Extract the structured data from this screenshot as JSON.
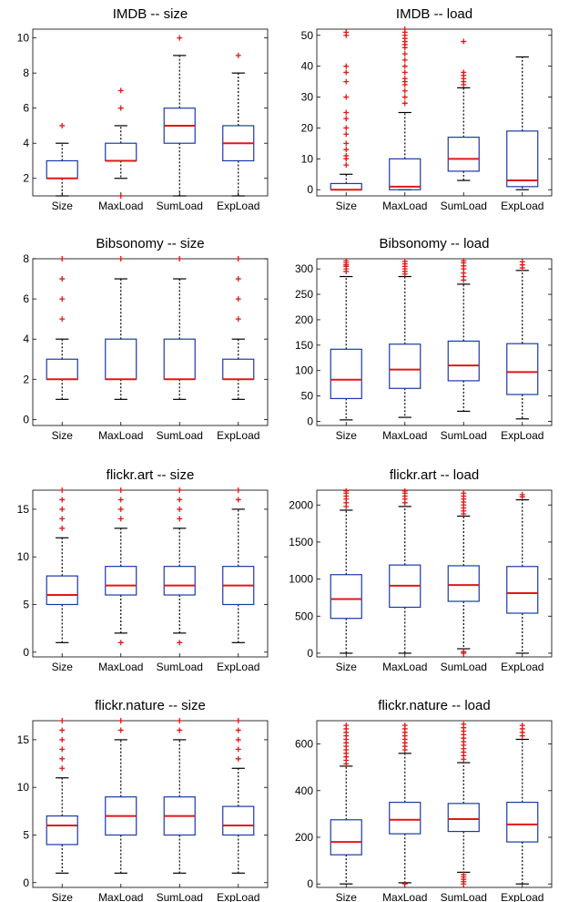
{
  "chart_data": [
    {
      "type": "boxplot",
      "title": "IMDB -- size",
      "categories": [
        "Size",
        "MaxLoad",
        "SumLoad",
        "ExpLoad"
      ],
      "ylim": [
        1,
        10.5
      ],
      "yticks": [
        2,
        4,
        6,
        8,
        10
      ],
      "boxes": [
        {
          "min": 1,
          "q1": 2,
          "median": 2,
          "q3": 3,
          "max": 4,
          "outliers": [
            5
          ]
        },
        {
          "min": 2,
          "q1": 3,
          "median": 3,
          "q3": 4,
          "max": 5,
          "outliers": [
            1,
            6,
            7
          ]
        },
        {
          "min": 1,
          "q1": 4,
          "median": 5,
          "q3": 6,
          "max": 9,
          "outliers": [
            10
          ]
        },
        {
          "min": 1,
          "q1": 3,
          "median": 4,
          "q3": 5,
          "max": 8,
          "outliers": [
            9
          ]
        }
      ]
    },
    {
      "type": "boxplot",
      "title": "IMDB -- load",
      "categories": [
        "Size",
        "MaxLoad",
        "SumLoad",
        "ExpLoad"
      ],
      "ylim": [
        -2,
        52
      ],
      "yticks": [
        0,
        10,
        20,
        30,
        40,
        50
      ],
      "boxes": [
        {
          "min": 0,
          "q1": 0,
          "median": 0,
          "q3": 2,
          "max": 5,
          "outliers": [
            8,
            10,
            11,
            13,
            15,
            18,
            20,
            23,
            25,
            30,
            35,
            38,
            40,
            50,
            51
          ]
        },
        {
          "min": 0,
          "q1": 0,
          "median": 1,
          "q3": 10,
          "max": 25,
          "outliers": [
            28,
            30,
            32,
            34,
            35,
            36,
            38,
            40,
            42,
            44,
            46,
            47,
            48,
            49,
            50,
            51,
            52
          ]
        },
        {
          "min": 3,
          "q1": 6,
          "median": 10,
          "q3": 17,
          "max": 33,
          "outliers": [
            34,
            35,
            36,
            37,
            38,
            48
          ]
        },
        {
          "min": 0,
          "q1": 1,
          "median": 3,
          "q3": 19,
          "max": 43,
          "outliers": []
        }
      ]
    },
    {
      "type": "boxplot",
      "title": "Bibsonomy -- size",
      "categories": [
        "Size",
        "MaxLoad",
        "SumLoad",
        "ExpLoad"
      ],
      "ylim": [
        -0.3,
        8
      ],
      "yticks": [
        0,
        2,
        4,
        6,
        8
      ],
      "boxes": [
        {
          "min": 1,
          "q1": 2,
          "median": 2,
          "q3": 3,
          "max": 4,
          "outliers": [
            5,
            6,
            7,
            8
          ]
        },
        {
          "min": 1,
          "q1": 2,
          "median": 2,
          "q3": 4,
          "max": 7,
          "outliers": [
            8
          ]
        },
        {
          "min": 1,
          "q1": 2,
          "median": 2,
          "q3": 4,
          "max": 7,
          "outliers": [
            8
          ]
        },
        {
          "min": 1,
          "q1": 2,
          "median": 2,
          "q3": 3,
          "max": 4,
          "outliers": [
            5,
            6,
            7,
            8
          ]
        }
      ]
    },
    {
      "type": "boxplot",
      "title": "Bibsonomy -- load",
      "categories": [
        "Size",
        "MaxLoad",
        "SumLoad",
        "ExpLoad"
      ],
      "ylim": [
        -8,
        320
      ],
      "yticks": [
        0,
        50,
        100,
        150,
        200,
        250,
        300
      ],
      "boxes": [
        {
          "min": 3,
          "q1": 45,
          "median": 82,
          "q3": 142,
          "max": 285,
          "outliers": [
            295,
            300,
            305,
            308,
            312,
            316
          ]
        },
        {
          "min": 8,
          "q1": 65,
          "median": 102,
          "q3": 152,
          "max": 285,
          "outliers": [
            290,
            295,
            300,
            305,
            310,
            315
          ]
        },
        {
          "min": 20,
          "q1": 80,
          "median": 110,
          "q3": 158,
          "max": 270,
          "outliers": [
            278,
            285,
            292,
            300,
            306,
            312,
            316
          ]
        },
        {
          "min": 5,
          "q1": 53,
          "median": 97,
          "q3": 153,
          "max": 297,
          "outliers": [
            302,
            308,
            314
          ]
        }
      ]
    },
    {
      "type": "boxplot",
      "title": "flickr.art -- size",
      "categories": [
        "Size",
        "MaxLoad",
        "SumLoad",
        "ExpLoad"
      ],
      "ylim": [
        -0.5,
        17
      ],
      "yticks": [
        0,
        5,
        10,
        15
      ],
      "boxes": [
        {
          "min": 1,
          "q1": 5,
          "median": 6,
          "q3": 8,
          "max": 12,
          "outliers": [
            13,
            14,
            15,
            16,
            17
          ]
        },
        {
          "min": 2,
          "q1": 6,
          "median": 7,
          "q3": 9,
          "max": 13,
          "outliers": [
            1,
            14,
            15,
            16,
            17
          ]
        },
        {
          "min": 2,
          "q1": 6,
          "median": 7,
          "q3": 9,
          "max": 13,
          "outliers": [
            1,
            14,
            15,
            16,
            17
          ]
        },
        {
          "min": 1,
          "q1": 5,
          "median": 7,
          "q3": 9,
          "max": 15,
          "outliers": [
            16,
            17
          ]
        }
      ]
    },
    {
      "type": "boxplot",
      "title": "flickr.art -- load",
      "categories": [
        "Size",
        "MaxLoad",
        "SumLoad",
        "ExpLoad"
      ],
      "ylim": [
        -50,
        2200
      ],
      "yticks": [
        0,
        500,
        1000,
        1500,
        2000
      ],
      "boxes": [
        {
          "min": 0,
          "q1": 470,
          "median": 730,
          "q3": 1060,
          "max": 1930,
          "outliers": [
            1980,
            2030,
            2080,
            2120,
            2160,
            2190
          ]
        },
        {
          "min": 0,
          "q1": 620,
          "median": 910,
          "q3": 1190,
          "max": 1980,
          "outliers": [
            2030,
            2080,
            2120,
            2160,
            2190
          ]
        },
        {
          "min": 60,
          "q1": 700,
          "median": 920,
          "q3": 1180,
          "max": 1850,
          "outliers": [
            0,
            20,
            1880,
            1920,
            1960,
            2000,
            2040,
            2080,
            2120,
            2160
          ]
        },
        {
          "min": 0,
          "q1": 540,
          "median": 810,
          "q3": 1170,
          "max": 2070,
          "outliers": [
            2110,
            2140
          ]
        }
      ]
    },
    {
      "type": "boxplot",
      "title": "flickr.nature -- size",
      "categories": [
        "Size",
        "MaxLoad",
        "SumLoad",
        "ExpLoad"
      ],
      "ylim": [
        -0.5,
        17
      ],
      "yticks": [
        0,
        5,
        10,
        15
      ],
      "boxes": [
        {
          "min": 1,
          "q1": 4,
          "median": 6,
          "q3": 7,
          "max": 11,
          "outliers": [
            12,
            13,
            14,
            15,
            16,
            17
          ]
        },
        {
          "min": 1,
          "q1": 5,
          "median": 7,
          "q3": 9,
          "max": 15,
          "outliers": [
            16,
            17
          ]
        },
        {
          "min": 1,
          "q1": 5,
          "median": 7,
          "q3": 9,
          "max": 15,
          "outliers": [
            16,
            17
          ]
        },
        {
          "min": 1,
          "q1": 5,
          "median": 6,
          "q3": 8,
          "max": 12,
          "outliers": [
            13,
            14,
            15,
            16,
            17
          ]
        }
      ]
    },
    {
      "type": "boxplot",
      "title": "flickr.nature -- load",
      "categories": [
        "Size",
        "MaxLoad",
        "SumLoad",
        "ExpLoad"
      ],
      "ylim": [
        -15,
        700
      ],
      "yticks": [
        0,
        200,
        400,
        600
      ],
      "boxes": [
        {
          "min": 0,
          "q1": 125,
          "median": 180,
          "q3": 275,
          "max": 505,
          "outliers": [
            515,
            530,
            545,
            560,
            575,
            590,
            605,
            620,
            635,
            650,
            665,
            680
          ]
        },
        {
          "min": 5,
          "q1": 215,
          "median": 275,
          "q3": 350,
          "max": 560,
          "outliers": [
            0,
            575,
            590,
            605,
            620,
            635,
            650,
            665,
            680
          ]
        },
        {
          "min": 50,
          "q1": 225,
          "median": 278,
          "q3": 345,
          "max": 520,
          "outliers": [
            0,
            10,
            20,
            30,
            40,
            535,
            550,
            565,
            580,
            595,
            610,
            625,
            640,
            655,
            670,
            685
          ]
        },
        {
          "min": 0,
          "q1": 180,
          "median": 255,
          "q3": 350,
          "max": 620,
          "outliers": [
            635,
            650,
            665,
            680
          ]
        }
      ]
    }
  ],
  "colors": {
    "box": "#1a3aa6",
    "median": "#e01818",
    "outlier": "#e01818",
    "whisker": "#000000"
  }
}
